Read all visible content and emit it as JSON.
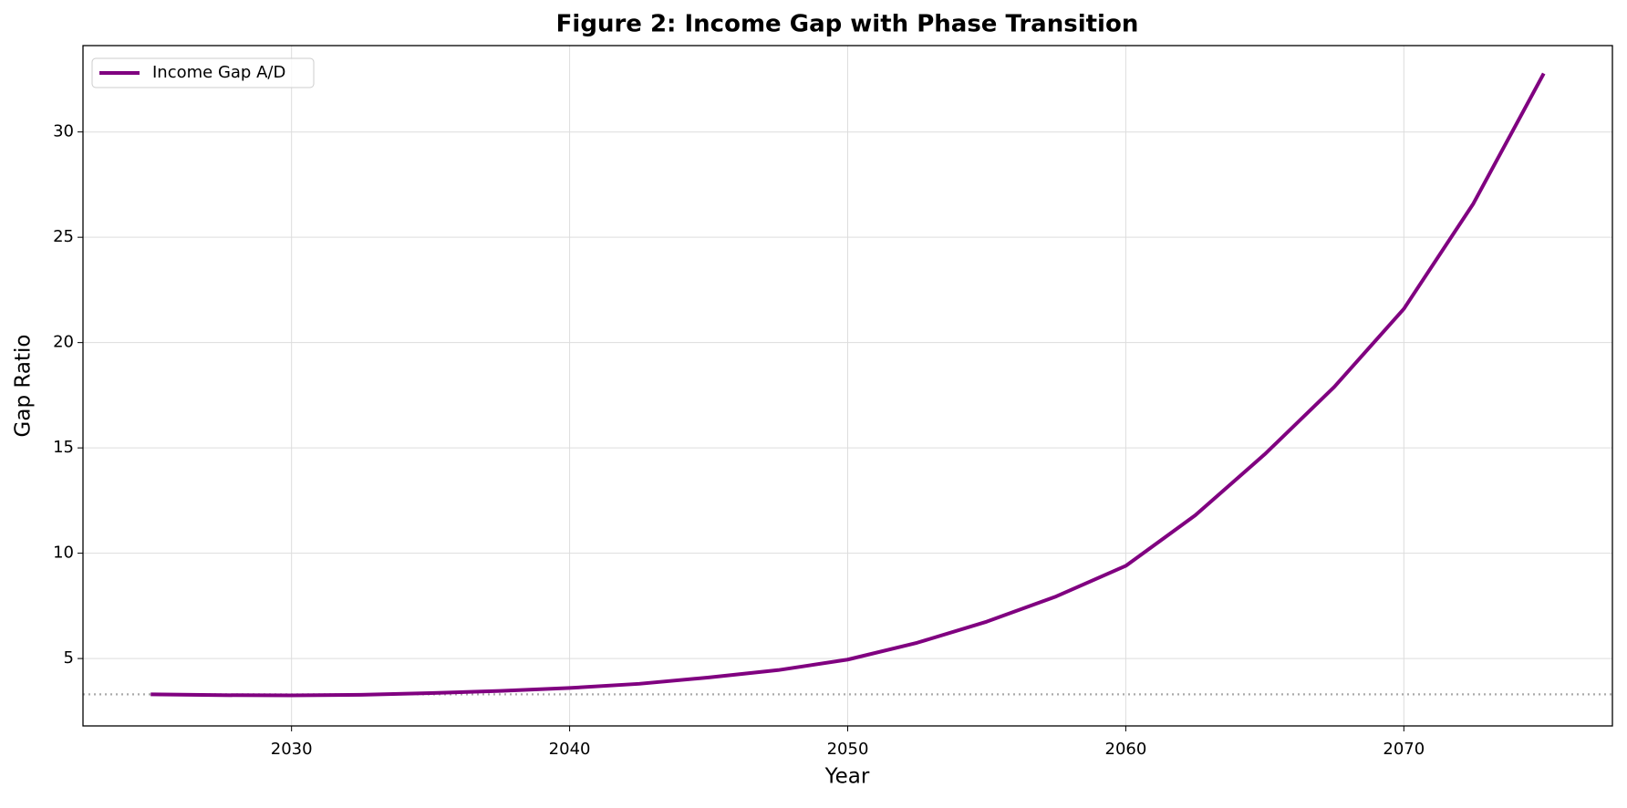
{
  "chart_data": {
    "type": "line",
    "title": "Figure 2: Income Gap with Phase Transition",
    "x_label": "Year",
    "y_label": "Gap Ratio",
    "x": [
      2025,
      2027.5,
      2030,
      2032.5,
      2035,
      2037.5,
      2040,
      2042.5,
      2045,
      2047.5,
      2050,
      2052.5,
      2055,
      2057.5,
      2060,
      2062.5,
      2065,
      2067.5,
      2070,
      2072.5,
      2075
    ],
    "series": [
      {
        "name": "Income Gap A/D",
        "color": "#800080",
        "values": [
          3.3,
          3.26,
          3.25,
          3.28,
          3.36,
          3.46,
          3.6,
          3.8,
          4.1,
          4.45,
          4.95,
          5.75,
          6.75,
          7.95,
          9.4,
          11.8,
          14.7,
          17.9,
          21.6,
          26.6,
          32.7
        ]
      }
    ],
    "reference_line": {
      "value": 3.3,
      "color": "#aaaaaa"
    },
    "xlim": [
      2022.5,
      2077.5
    ],
    "ylim": [
      1.8,
      34.1
    ],
    "xticks": [
      2030,
      2040,
      2050,
      2060,
      2070
    ],
    "yticks": [
      5,
      10,
      15,
      20,
      25,
      30
    ],
    "grid": true,
    "legend": "upper left"
  }
}
